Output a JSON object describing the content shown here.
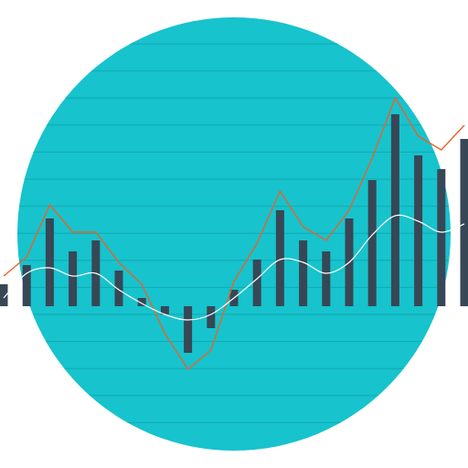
{
  "colors": {
    "background": "#ffffff",
    "disc": "#17c3cc",
    "gridline": "#11aab3",
    "bar": "#374756",
    "line_primary": "#e8632a",
    "line_secondary": "#ffffff"
  },
  "chart_data": {
    "type": "bar",
    "title": "",
    "xlabel": "",
    "ylabel": "",
    "ylim": [
      -4.2,
      8.9
    ],
    "grid": true,
    "legend": "none",
    "x": [
      0,
      1,
      2,
      3,
      4,
      5,
      6,
      7,
      8,
      9,
      10,
      11,
      12,
      13,
      14,
      15,
      16,
      17,
      18,
      19,
      20
    ],
    "series": [
      {
        "kind": "bar",
        "values": [
          0.8,
          1.5,
          3.2,
          2.0,
          2.4,
          1.3,
          0.3,
          -0.3,
          -1.7,
          -0.8,
          0.6,
          1.7,
          3.5,
          2.4,
          2.0,
          3.2,
          4.6,
          7.0,
          5.5,
          5.0,
          6.1
        ]
      },
      {
        "kind": "line",
        "values": [
          1.1,
          1.8,
          3.7,
          2.7,
          2.7,
          1.6,
          0.8,
          -1.0,
          -2.3,
          -1.6,
          0.9,
          2.3,
          4.2,
          2.9,
          2.4,
          3.5,
          5.4,
          7.6,
          6.2,
          5.7,
          6.6
        ]
      },
      {
        "kind": "line",
        "values": [
          0.3,
          1.2,
          1.4,
          1.1,
          1.2,
          0.6,
          0.1,
          -0.3,
          -0.5,
          -0.3,
          0.3,
          1.0,
          1.7,
          1.6,
          1.2,
          1.6,
          2.6,
          3.3,
          3.1,
          2.7,
          3.0
        ]
      }
    ]
  }
}
